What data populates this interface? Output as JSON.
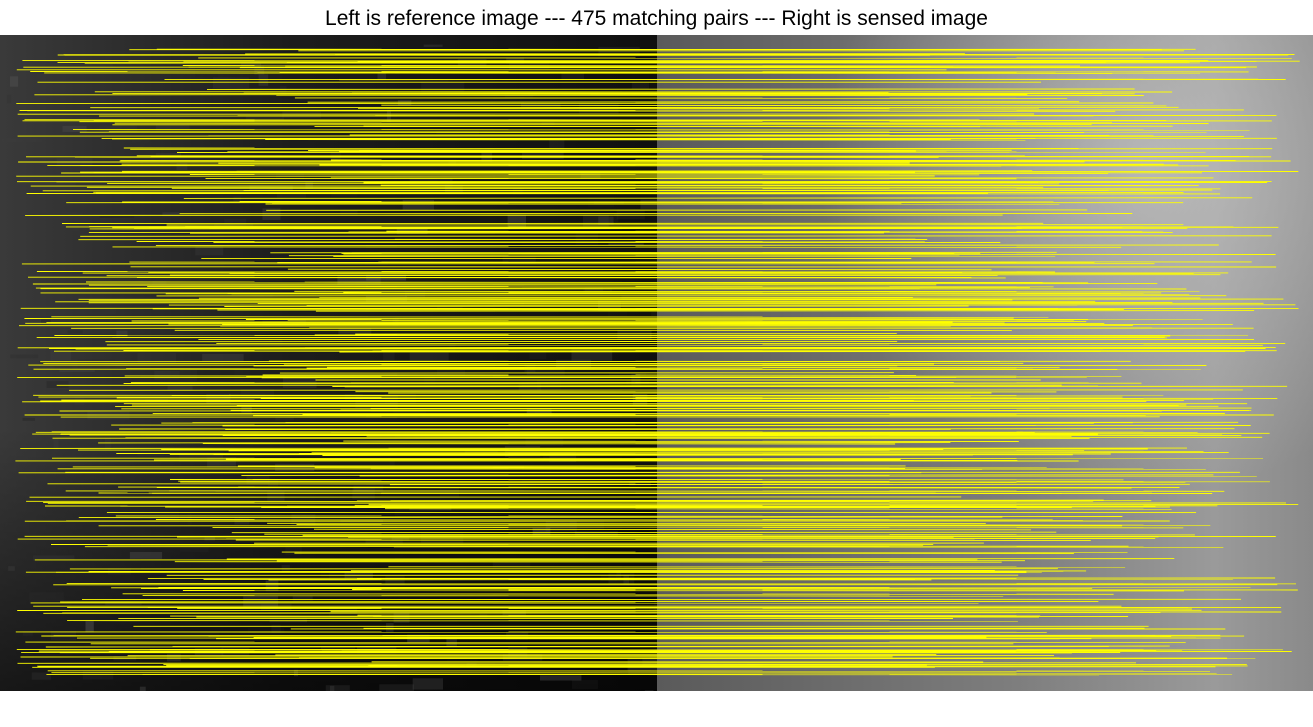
{
  "title": "Left is reference image --- 475 matching pairs --- Right is sensed image",
  "match_count": 475,
  "line_color": "#ffff00",
  "reference_tone": "#141414",
  "sensed_tone": "#8c8c8c"
}
